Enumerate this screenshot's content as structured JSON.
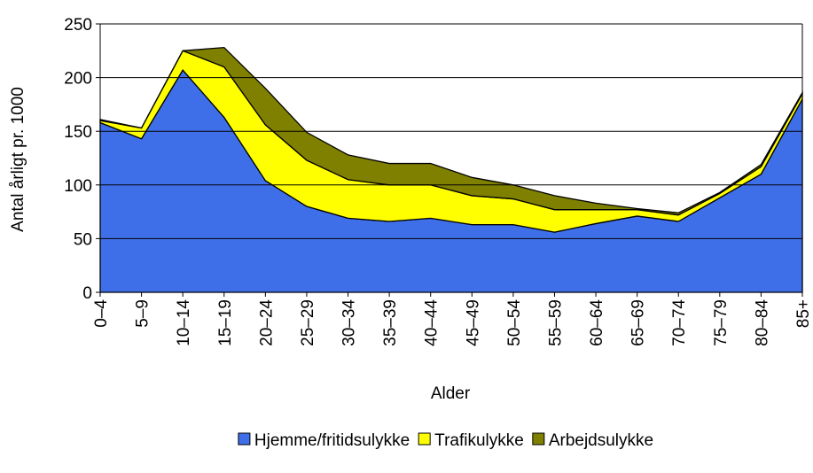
{
  "chart_data": {
    "type": "stacked_area",
    "x_label": "Alder",
    "y_label": "Antal årligt pr. 1000",
    "categories": [
      "0–4",
      "5–9",
      "10–14",
      "15–19",
      "20–24",
      "25–29",
      "30–34",
      "35–39",
      "40–44",
      "45–49",
      "50–54",
      "55–59",
      "60–64",
      "65–69",
      "70–74",
      "75–79",
      "80–84",
      "85+"
    ],
    "series": [
      {
        "name": "Hjemme/fritidsulykke",
        "color": "#3f6fe8",
        "values": [
          158,
          143,
          207,
          163,
          104,
          80,
          69,
          66,
          69,
          63,
          63,
          56,
          64,
          71,
          66,
          88,
          110,
          180
        ]
      },
      {
        "name": "Trafikulykke",
        "color": "#ffff00",
        "values": [
          2,
          10,
          18,
          47,
          52,
          43,
          36,
          34,
          31,
          27,
          24,
          21,
          13,
          6,
          6,
          4,
          7,
          5
        ]
      },
      {
        "name": "Arbejdsulykke",
        "color": "#808000",
        "values": [
          1,
          0,
          0,
          18,
          34,
          26,
          23,
          20,
          20,
          17,
          13,
          13,
          6,
          1,
          2,
          1,
          2,
          1
        ]
      }
    ],
    "ylim": [
      0,
      250
    ],
    "yticks": [
      0,
      50,
      100,
      150,
      200,
      250
    ],
    "grid": true,
    "legend": "bottom"
  }
}
